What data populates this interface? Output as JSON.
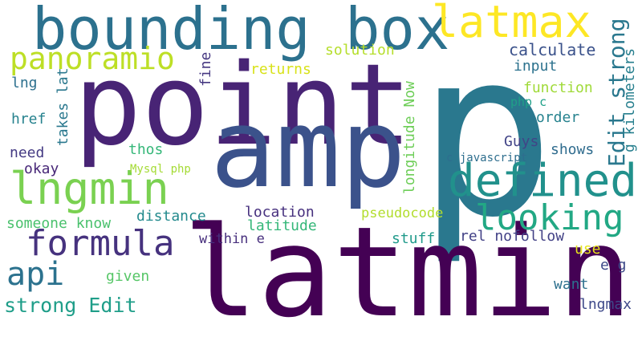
{
  "words": [
    {
      "text": "p",
      "color": "#2a788e"
    },
    {
      "text": "latmin",
      "color": "#440154"
    },
    {
      "text": "point",
      "color": "#482475"
    },
    {
      "text": "amp",
      "color": "#3b528b"
    },
    {
      "text": "bounding box",
      "color": "#2c718e"
    },
    {
      "text": "defined",
      "color": "#21918c"
    },
    {
      "text": "lngmin",
      "color": "#7ad151"
    },
    {
      "text": "latmax",
      "color": "#fde725"
    },
    {
      "text": "formula",
      "color": "#46327e"
    },
    {
      "text": "looking",
      "color": "#22a884"
    },
    {
      "text": "panoramio",
      "color": "#bddf26"
    },
    {
      "text": "api",
      "color": "#2c728e"
    },
    {
      "text": "Edit strong",
      "color": "#2a788e"
    },
    {
      "text": "strong Edit",
      "color": "#1f9e89"
    },
    {
      "text": "g kilometers",
      "color": "#277f8e"
    },
    {
      "text": "calculate",
      "color": "#3b528b"
    },
    {
      "text": "input",
      "color": "#2c728e"
    },
    {
      "text": "function",
      "color": "#a0da39"
    },
    {
      "text": "order",
      "color": "#26828e"
    },
    {
      "text": "solution",
      "color": "#b5de2b"
    },
    {
      "text": "returns",
      "color": "#d8e219"
    },
    {
      "text": "fine",
      "color": "#453781"
    },
    {
      "text": "lng",
      "color": "#2d708e"
    },
    {
      "text": "takes lat",
      "color": "#2a788e"
    },
    {
      "text": "href",
      "color": "#26828e"
    },
    {
      "text": "need",
      "color": "#443a83"
    },
    {
      "text": "okay",
      "color": "#482878"
    },
    {
      "text": "thos",
      "color": "#35b779"
    },
    {
      "text": "Mysql php",
      "color": "#a5db36"
    },
    {
      "text": "longitude Now",
      "color": "#6ece58"
    },
    {
      "text": "php c",
      "color": "#1fa088"
    },
    {
      "text": "Guys",
      "color": "#414487"
    },
    {
      "text": "shows",
      "color": "#2f6c8e"
    },
    {
      "text": "c javascript",
      "color": "#2e6e8e"
    },
    {
      "text": "someone know",
      "color": "#4ac16d"
    },
    {
      "text": "distance",
      "color": "#238a8d"
    },
    {
      "text": "location",
      "color": "#46307e"
    },
    {
      "text": "latitude",
      "color": "#35b779"
    },
    {
      "text": "within e",
      "color": "#472f7d"
    },
    {
      "text": "pseudocode",
      "color": "#b2dd2d"
    },
    {
      "text": "stuff",
      "color": "#1f9a8a"
    },
    {
      "text": "rel nofollow",
      "color": "#424186"
    },
    {
      "text": "use",
      "color": "#e5e419"
    },
    {
      "text": "e g",
      "color": "#3e4a89"
    },
    {
      "text": "given",
      "color": "#56c667"
    },
    {
      "text": "want",
      "color": "#2d708e"
    },
    {
      "text": "lngmax",
      "color": "#3e4989"
    }
  ]
}
